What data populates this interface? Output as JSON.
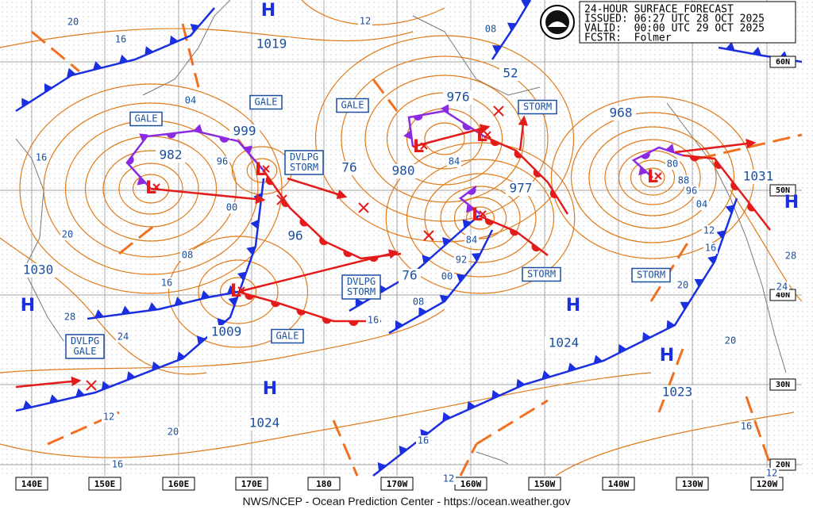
{
  "header": {
    "lines": [
      "24-HOUR SURFACE FORECAST",
      "ISSUED: 06:27 UTC 28 OCT 2025",
      "VALID:  00:00 UTC 29 OCT 2025",
      "FCSTR:  Folmer"
    ]
  },
  "footer": "NWS/NCEP - Ocean Prediction Center - https://ocean.weather.gov",
  "longitudes": [
    "140E",
    "150E",
    "160E",
    "170E",
    "180",
    "170W",
    "160W",
    "150W",
    "140W",
    "130W",
    "120W"
  ],
  "latitudes": [
    "60N",
    "50N",
    "40N",
    "30N",
    "20N"
  ],
  "highs": [
    "H",
    "H",
    "H",
    "H",
    "H",
    "H"
  ],
  "lows": [
    "L",
    "L",
    "L",
    "L",
    "L",
    "L",
    "L"
  ],
  "pressures": [
    1019,
    999,
    982,
    976,
    980,
    977,
    968,
    1031,
    1030,
    1009,
    1024,
    1023,
    1024,
    76,
    96,
    76,
    52
  ],
  "isobar_labels": [
    "20",
    "16",
    "12",
    "08",
    "04",
    "16",
    "96",
    "00",
    "20",
    "08",
    "16",
    "28",
    "24",
    "84",
    "80",
    "88",
    "96",
    "04",
    "12",
    "16",
    "28",
    "24",
    "20",
    "84",
    "92",
    "00",
    "08",
    "16",
    "12",
    "20",
    "16",
    "16",
    "12",
    "20",
    "16",
    "12"
  ],
  "warnings": [
    [
      "GALE"
    ],
    [
      "GALE"
    ],
    [
      "GALE"
    ],
    [
      "DVLPG",
      "STORM"
    ],
    [
      "STORM"
    ],
    [
      "DVLPG",
      "STORM"
    ],
    [
      "STORM"
    ],
    [
      "STORM"
    ],
    [
      "GALE"
    ],
    [
      "DVLPG",
      "GALE"
    ]
  ]
}
